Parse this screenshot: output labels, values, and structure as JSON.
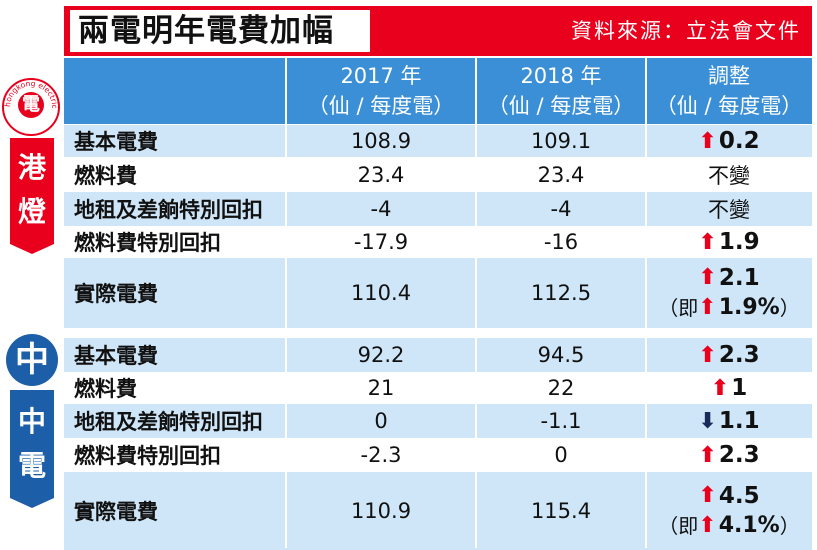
{
  "title": "兩電明年電費加幅",
  "source": "資料來源：立法會文件",
  "header": {
    "col2017": "2017 年",
    "col2018": "2018 年",
    "colAdj": "調整",
    "unit": "（仙 / 每度電）"
  },
  "hke": {
    "logo_text": "hongkong electric",
    "logo_char": "電",
    "banner": "港燈",
    "rows": [
      {
        "label": "基本電費",
        "v2017": "108.9",
        "v2018": "109.1",
        "adj": "0.2",
        "dir": "up"
      },
      {
        "label": "燃料費",
        "v2017": "23.4",
        "v2018": "23.4",
        "adj": "不變",
        "dir": "none"
      },
      {
        "label": "地租及差餉特別回扣",
        "v2017": "-4",
        "v2018": "-4",
        "adj": "不變",
        "dir": "none"
      },
      {
        "label": "燃料費特別回扣",
        "v2017": "-17.9",
        "v2018": "-16",
        "adj": "1.9",
        "dir": "up"
      },
      {
        "label": "實際電費",
        "v2017": "110.4",
        "v2018": "112.5",
        "adj": "2.1",
        "dir": "up",
        "pct_prefix": "（即",
        "pct": "1.9%",
        "pct_suffix": "）"
      }
    ]
  },
  "clp": {
    "logo_char": "中",
    "banner": "中電",
    "rows": [
      {
        "label": "基本電費",
        "v2017": "92.2",
        "v2018": "94.5",
        "adj": "2.3",
        "dir": "up"
      },
      {
        "label": "燃料費",
        "v2017": "21",
        "v2018": "22",
        "adj": "1",
        "dir": "up"
      },
      {
        "label": "地租及差餉特別回扣",
        "v2017": "0",
        "v2018": "-1.1",
        "adj": "1.1",
        "dir": "down"
      },
      {
        "label": "燃料費特別回扣",
        "v2017": "-2.3",
        "v2018": "0",
        "adj": "2.3",
        "dir": "up"
      },
      {
        "label": "實際電費",
        "v2017": "110.9",
        "v2018": "115.4",
        "adj": "4.5",
        "dir": "up",
        "pct_prefix": "（即",
        "pct": "4.1%",
        "pct_suffix": "）"
      }
    ]
  },
  "icons": {
    "up": "red-up-arrow-icon",
    "down": "navy-down-arrow-icon"
  },
  "colors": {
    "red": "#e8001c",
    "blue_header": "#3a8fd6",
    "row_shade": "#cfe6f8",
    "clp_blue": "#1c5fa8"
  }
}
